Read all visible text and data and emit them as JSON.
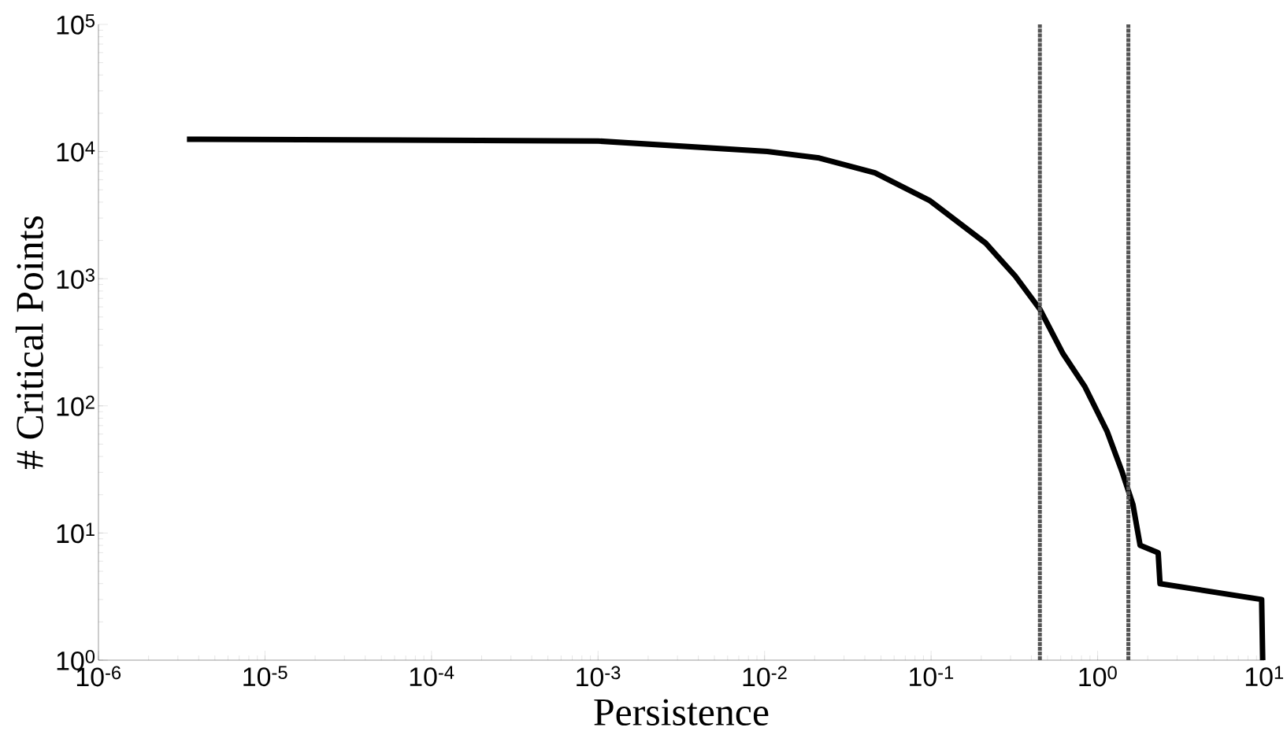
{
  "chart_data": {
    "type": "line",
    "xlabel": "Persistence",
    "ylabel": "# Critical Points",
    "log": "xy",
    "grid": false,
    "marker": "none",
    "line_style": "solid",
    "xlim": [
      1e-06,
      10
    ],
    "ylim": [
      1,
      100000
    ],
    "xticks": [
      {
        "value": 1e-06,
        "label": "10$^{-6}$"
      },
      {
        "value": 1e-05,
        "label": "10$^{-5}$"
      },
      {
        "value": 0.0001,
        "label": "10$^{-4}$"
      },
      {
        "value": 0.001,
        "label": "10$^{-3}$"
      },
      {
        "value": 0.01,
        "label": "10$^{-2}$"
      },
      {
        "value": 0.1,
        "label": "10$^{-1}$"
      },
      {
        "value": 1,
        "label": "10$^{0}$"
      },
      {
        "value": 10,
        "label": "10$^{1}$"
      }
    ],
    "yticks": [
      {
        "value": 1,
        "label": "10$^{0}$"
      },
      {
        "value": 10,
        "label": "10$^{1}$"
      },
      {
        "value": 100,
        "label": "10$^{2}$"
      },
      {
        "value": 1000,
        "label": "10$^{3}$"
      },
      {
        "value": 10000,
        "label": "10$^{4}$"
      },
      {
        "value": 100000,
        "label": "10$^{5}$"
      }
    ],
    "series": [
      {
        "color": "#000000",
        "x": [
          3.4e-06,
          0.001,
          0.0104,
          0.0213,
          0.046,
          0.0986,
          0.213,
          0.32,
          0.451,
          0.62,
          0.84,
          1.14,
          1.4,
          1.63,
          1.8,
          2.31,
          2.37,
          9.66,
          9.8
        ],
        "values": [
          12500,
          12100,
          10000,
          8900,
          6800,
          4100,
          1900,
          1050,
          573,
          257,
          141,
          63,
          30.5,
          16.7,
          8,
          7,
          4,
          3,
          1
        ]
      }
    ],
    "ref_lines": [
      {
        "axis": "x",
        "value": 0.45,
        "color": "#555555",
        "line_style": "dotted"
      },
      {
        "axis": "x",
        "value": 1.53,
        "color": "#555555",
        "line_style": "dotted"
      }
    ]
  }
}
